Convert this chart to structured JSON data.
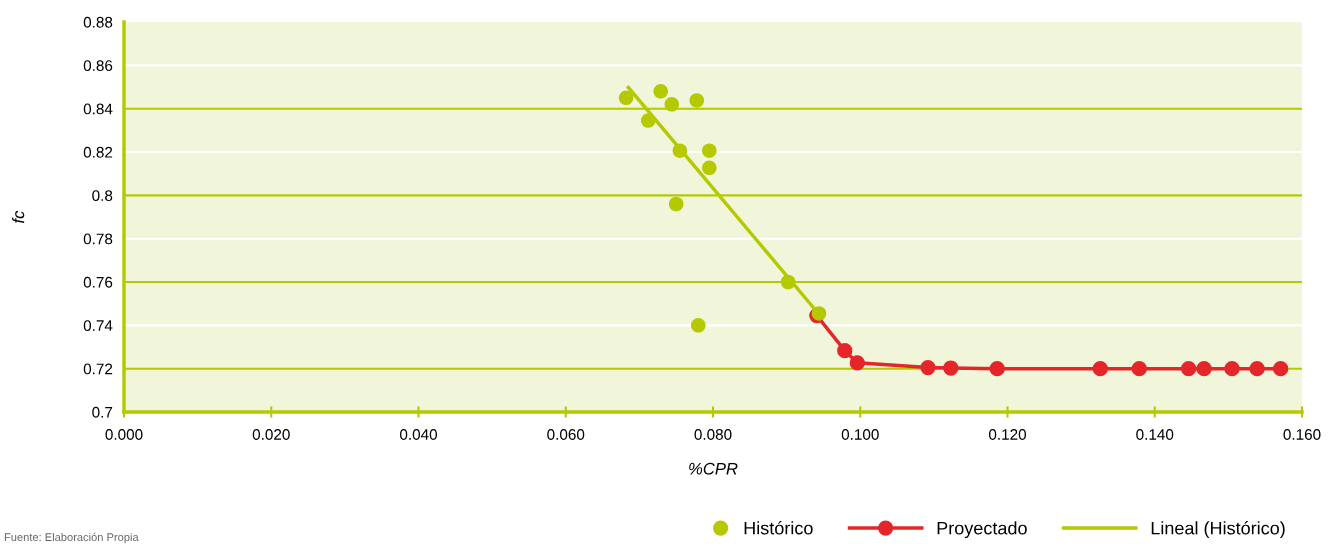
{
  "chart_data": {
    "type": "scatter",
    "xlabel": "%CPR",
    "ylabel": "fc",
    "xlim": [
      0,
      0.16
    ],
    "ylim": [
      0.7,
      0.88
    ],
    "xticks": [
      {
        "value": 0,
        "label": "0.000"
      },
      {
        "value": 0.02,
        "label": "0.020"
      },
      {
        "value": 0.04,
        "label": "0.040"
      },
      {
        "value": 0.06,
        "label": "0.060"
      },
      {
        "value": 0.08,
        "label": "0.080"
      },
      {
        "value": 0.1,
        "label": "0.100"
      },
      {
        "value": 0.12,
        "label": "0.120"
      },
      {
        "value": 0.14,
        "label": "0.140"
      },
      {
        "value": 0.16,
        "label": "0.160"
      }
    ],
    "yticks": [
      0.7,
      0.72,
      0.74,
      0.76,
      0.78,
      0.8,
      0.82,
      0.84,
      0.86,
      0.88
    ],
    "grid": "y",
    "legend": "bottom right",
    "series": [
      {
        "name": "Histórico",
        "color": "#b5c900",
        "marker": "circle",
        "x": [
          0.0682,
          0.0729,
          0.0712,
          0.0744,
          0.0778,
          0.0755,
          0.0795,
          0.0795,
          0.075,
          0.078,
          0.0902,
          0.0944
        ],
        "values": [
          0.845,
          0.848,
          0.8345,
          0.842,
          0.8438,
          0.8206,
          0.8206,
          0.8127,
          0.796,
          0.74,
          0.76,
          0.7455
        ]
      },
      {
        "name": "Proyectado",
        "type": "line",
        "color": "#e4262b",
        "marker": "circle",
        "x": [
          0.0941,
          0.0979,
          0.0996,
          0.1092,
          0.1123,
          0.1186,
          0.1326,
          0.1379,
          0.1446,
          0.1467,
          0.1505,
          0.1539,
          0.1571
        ],
        "values": [
          0.7445,
          0.7283,
          0.7227,
          0.7205,
          0.7203,
          0.72,
          0.72,
          0.72,
          0.72,
          0.72,
          0.72,
          0.72,
          0.72
        ]
      },
      {
        "name": "Lineal (Histórico)",
        "type": "line",
        "color": "#b5c900",
        "marker": "none",
        "x": [
          0.0685,
          0.0943
        ],
        "values": [
          0.8498,
          0.7455
        ]
      }
    ],
    "annotations": [
      "Fuente: Elaboración Propia"
    ]
  }
}
